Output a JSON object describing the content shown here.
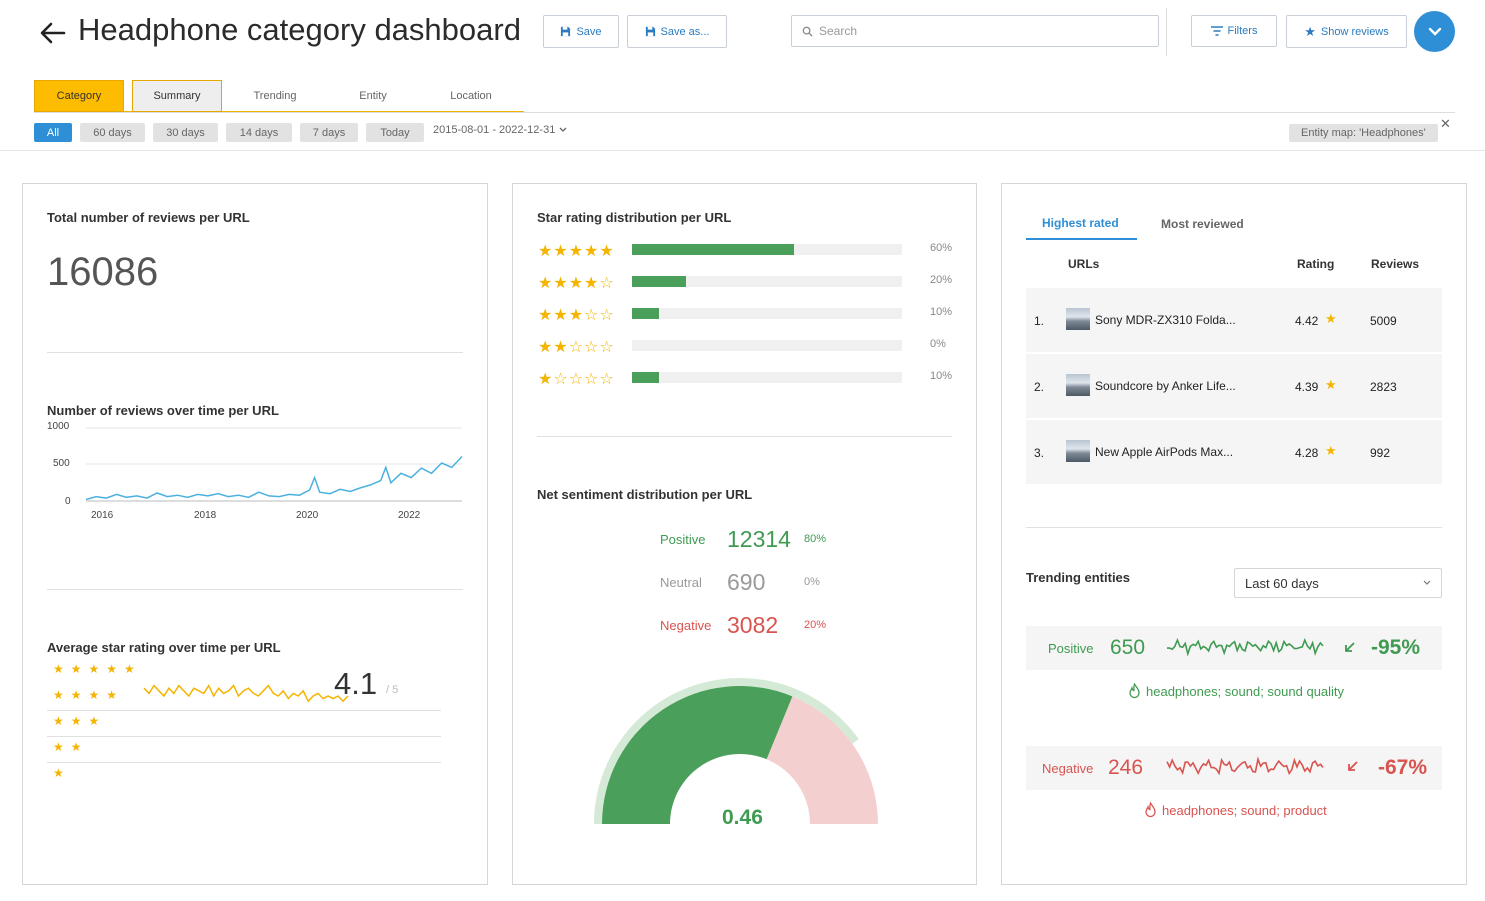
{
  "header": {
    "title": "Headphone category dashboard",
    "save_label": "Save",
    "save_as_label": "Save as...",
    "search_placeholder": "Search",
    "filters_label": "Filters",
    "show_reviews_label": "Show reviews"
  },
  "tabs": [
    "Category",
    "Summary",
    "Trending",
    "Entity",
    "Location"
  ],
  "date_filters": [
    "All",
    "60 days",
    "30 days",
    "14 days",
    "7 days",
    "Today"
  ],
  "date_range": "2015-08-01 - 2022-12-31",
  "entity_map": "Entity map: 'Headphones'",
  "total_reviews": {
    "title": "Total number of reviews per URL",
    "value": "16086"
  },
  "reviews_over_time": {
    "title": "Number of reviews over time per URL",
    "chart_data": {
      "type": "line",
      "y_ticks": [
        "1000",
        "500",
        "0"
      ],
      "x_ticks": [
        "2016",
        "2018",
        "2020",
        "2022"
      ],
      "ylim": [
        0,
        1000
      ],
      "xlim": [
        2015.6,
        2023.0
      ],
      "color": "#4ab0e0",
      "x": [
        2015.6,
        2015.8,
        2016.0,
        2016.2,
        2016.4,
        2016.6,
        2016.8,
        2017.0,
        2017.2,
        2017.4,
        2017.6,
        2017.8,
        2018.0,
        2018.2,
        2018.4,
        2018.6,
        2018.8,
        2019.0,
        2019.2,
        2019.4,
        2019.6,
        2019.8,
        2020.0,
        2020.1,
        2020.2,
        2020.4,
        2020.6,
        2020.8,
        2021.0,
        2021.2,
        2021.4,
        2021.5,
        2021.6,
        2021.8,
        2022.0,
        2022.2,
        2022.4,
        2022.6,
        2022.8,
        2023.0
      ],
      "y": [
        20,
        60,
        40,
        90,
        50,
        70,
        40,
        110,
        60,
        80,
        50,
        90,
        70,
        100,
        60,
        80,
        50,
        120,
        70,
        60,
        90,
        80,
        150,
        320,
        120,
        100,
        160,
        130,
        180,
        220,
        280,
        460,
        250,
        380,
        320,
        450,
        380,
        520,
        460,
        610
      ]
    }
  },
  "avg_rating_over_time": {
    "title": "Average star rating over time per URL",
    "value": "4.1",
    "of": "/ 5",
    "chart_data": {
      "type": "line",
      "ylim": [
        1,
        5
      ],
      "color": "#f4b400",
      "y": [
        4.3,
        4.1,
        4.4,
        4.2,
        4.0,
        4.3,
        4.1,
        4.4,
        4.2,
        4.0,
        4.3,
        4.2,
        4.1,
        4.4,
        4.0,
        4.3,
        4.1,
        4.2,
        4.4,
        4.0,
        4.2,
        4.3,
        4.1,
        4.0,
        4.2,
        4.4,
        4.1,
        4.0,
        4.2,
        3.9,
        4.1,
        4.0,
        4.2,
        3.8,
        4.0,
        4.1,
        3.9,
        4.0,
        3.9,
        4.0,
        3.8,
        4.0
      ]
    }
  },
  "star_distribution": {
    "title": "Star rating distribution per URL",
    "chart_data": {
      "type": "bar",
      "categories": [
        "★★★★★",
        "★★★★☆",
        "★★★☆☆",
        "★★☆☆☆",
        "★☆☆☆☆"
      ],
      "values": [
        60,
        20,
        10,
        0,
        10
      ],
      "labels": [
        "60%",
        "20%",
        "10%",
        "0%",
        "10%"
      ],
      "max": 100
    }
  },
  "sentiment": {
    "title": "Net sentiment distribution per URL",
    "rows": [
      {
        "label": "Positive",
        "value": "12314",
        "pct": "80%",
        "color": "#3f9b52"
      },
      {
        "label": "Neutral",
        "value": "690",
        "pct": "0%",
        "color": "#9a9a9a"
      },
      {
        "label": "Negative",
        "value": "3082",
        "pct": "20%",
        "color": "#d9534f"
      }
    ],
    "net_value": "0.46",
    "positive_share": 0.8
  },
  "ranking": {
    "tabs": [
      "Highest rated",
      "Most reviewed"
    ],
    "columns": [
      "URLs",
      "Rating",
      "Reviews"
    ],
    "rows": [
      {
        "rank": "1.",
        "name": "Sony MDR-ZX310 Folda...",
        "rating": "4.42",
        "reviews": "5009"
      },
      {
        "rank": "2.",
        "name": "Soundcore by Anker Life...",
        "rating": "4.39",
        "reviews": "2823"
      },
      {
        "rank": "3.",
        "name": "New Apple AirPods Max...",
        "rating": "4.28",
        "reviews": "992"
      }
    ]
  },
  "trending": {
    "title": "Trending entities",
    "period": "Last 60 days",
    "positive": {
      "label": "Positive",
      "value": "650",
      "pct": "-95%",
      "tags": "headphones; sound; sound quality",
      "color": "#3f9b52"
    },
    "negative": {
      "label": "Negative",
      "value": "246",
      "pct": "-67%",
      "tags": "headphones; sound; product",
      "color": "#d9534f"
    }
  }
}
